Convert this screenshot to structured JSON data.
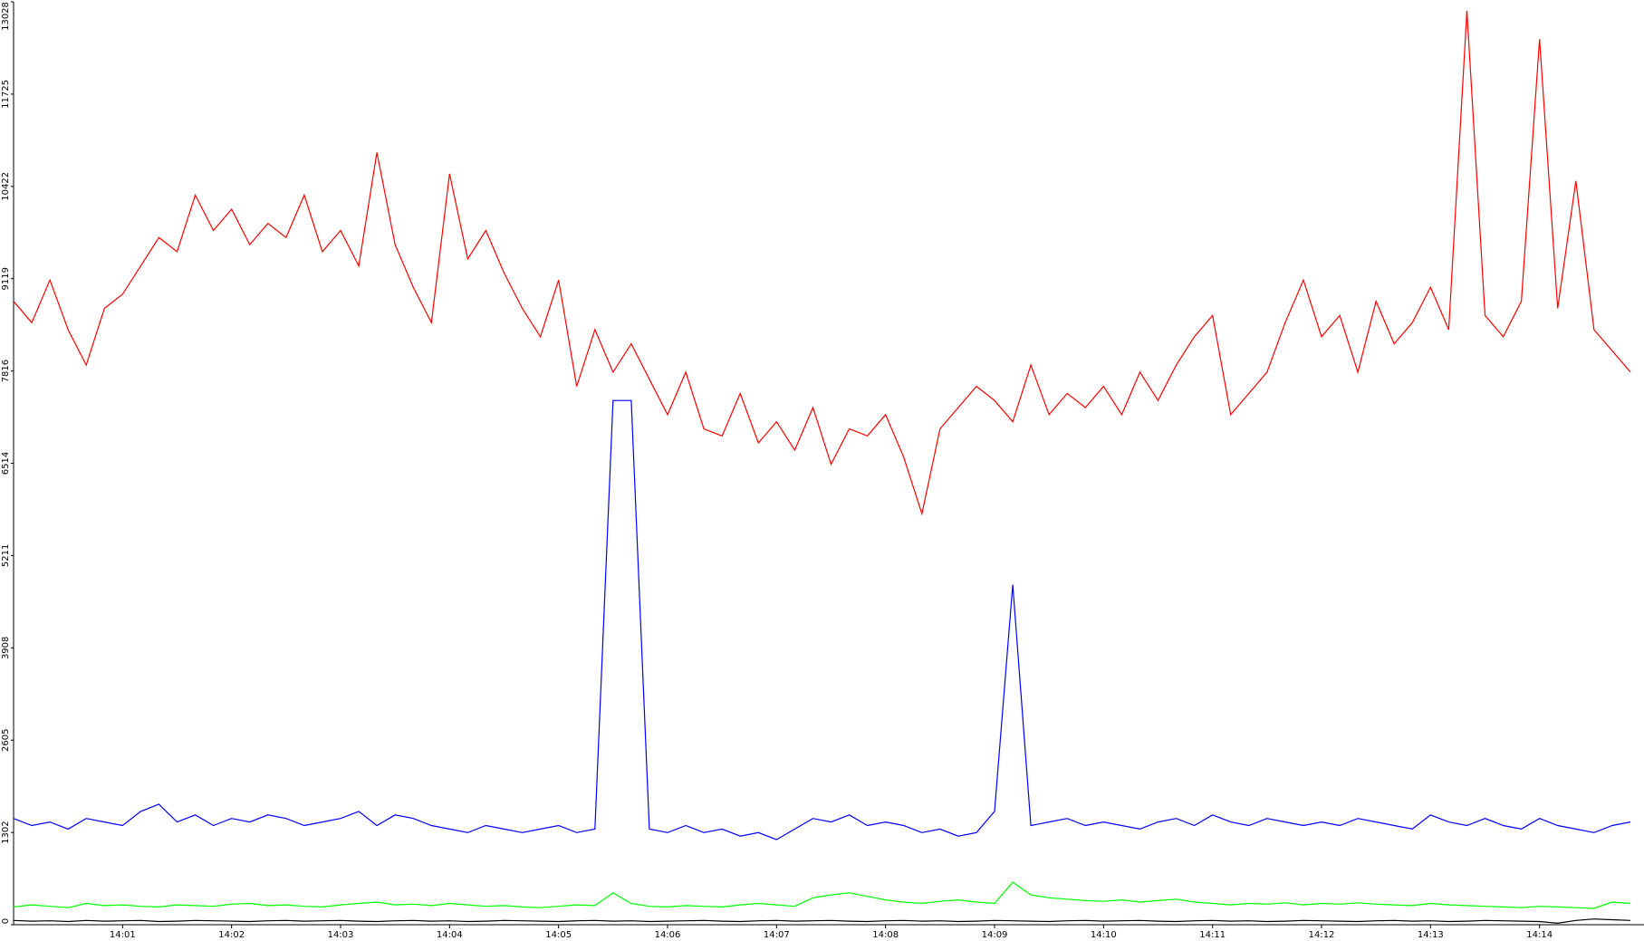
{
  "chart_data": {
    "type": "line",
    "categories": [
      null,
      null,
      null,
      null,
      null,
      null,
      "14:01",
      null,
      null,
      null,
      null,
      null,
      "14:02",
      null,
      null,
      null,
      null,
      null,
      "14:03",
      null,
      null,
      null,
      null,
      null,
      "14:04",
      null,
      null,
      null,
      null,
      null,
      "14:05",
      null,
      null,
      null,
      null,
      null,
      "14:06",
      null,
      null,
      null,
      null,
      null,
      "14:07",
      null,
      null,
      null,
      null,
      null,
      "14:08",
      null,
      null,
      null,
      null,
      null,
      "14:09",
      null,
      null,
      null,
      null,
      null,
      "14:10",
      null,
      null,
      null,
      null,
      null,
      "14:11",
      null,
      null,
      null,
      null,
      null,
      "14:12",
      null,
      null,
      null,
      null,
      null,
      "14:13",
      null,
      null,
      null,
      null,
      null,
      "14:14",
      null,
      null,
      null,
      null,
      null
    ],
    "series": [
      {
        "color": "#ff0000",
        "values": [
          8800,
          8500,
          9100,
          8400,
          7900,
          8700,
          8900,
          9300,
          9700,
          9500,
          10300,
          9800,
          10100,
          9600,
          9900,
          9700,
          10300,
          9500,
          9800,
          9300,
          10900,
          9600,
          9000,
          8500,
          10600,
          9400,
          9800,
          9200,
          8700,
          8300,
          9100,
          7600,
          8400,
          7800,
          8200,
          7700,
          7200,
          7800,
          7000,
          6900,
          7500,
          6800,
          7100,
          6700,
          7300,
          6500,
          7000,
          6900,
          7200,
          6600,
          5800,
          7000,
          7300,
          7600,
          7400,
          7100,
          7900,
          7200,
          7500,
          7300,
          7600,
          7200,
          7800,
          7400,
          7900,
          8300,
          8600,
          7200,
          7500,
          7800,
          8500,
          9100,
          8300,
          8600,
          7800,
          8800,
          8200,
          8500,
          9000,
          8400,
          12900,
          8600,
          8300,
          8800,
          12500,
          8700,
          10500,
          8400,
          8100,
          7800
        ]
      },
      {
        "color": "#0000ff",
        "values": [
          1500,
          1400,
          1450,
          1350,
          1500,
          1450,
          1400,
          1600,
          1700,
          1450,
          1550,
          1400,
          1500,
          1450,
          1550,
          1500,
          1400,
          1450,
          1500,
          1600,
          1400,
          1550,
          1500,
          1400,
          1350,
          1300,
          1400,
          1350,
          1300,
          1350,
          1400,
          1300,
          1350,
          7400,
          7400,
          1350,
          1300,
          1400,
          1300,
          1350,
          1250,
          1300,
          1200,
          1350,
          1500,
          1450,
          1550,
          1400,
          1450,
          1400,
          1300,
          1350,
          1250,
          1300,
          1600,
          4800,
          1400,
          1450,
          1500,
          1400,
          1450,
          1400,
          1350,
          1450,
          1500,
          1400,
          1550,
          1450,
          1400,
          1500,
          1450,
          1400,
          1450,
          1400,
          1500,
          1450,
          1400,
          1350,
          1550,
          1450,
          1400,
          1500,
          1400,
          1350,
          1500,
          1400,
          1350,
          1300,
          1400,
          1450
        ]
      },
      {
        "color": "#00ff00",
        "values": [
          250,
          280,
          260,
          240,
          300,
          270,
          280,
          260,
          250,
          280,
          270,
          260,
          290,
          300,
          270,
          280,
          260,
          250,
          280,
          300,
          320,
          280,
          290,
          270,
          300,
          280,
          260,
          270,
          250,
          240,
          260,
          280,
          270,
          450,
          300,
          260,
          250,
          270,
          260,
          250,
          280,
          300,
          280,
          260,
          380,
          420,
          450,
          400,
          350,
          320,
          300,
          330,
          350,
          320,
          300,
          600,
          420,
          380,
          360,
          340,
          330,
          350,
          320,
          340,
          360,
          320,
          300,
          280,
          300,
          290,
          310,
          280,
          300,
          290,
          310,
          290,
          280,
          270,
          300,
          280,
          270,
          260,
          250,
          240,
          260,
          250,
          240,
          230,
          320,
          300
        ]
      },
      {
        "color": "#000000",
        "values": [
          60,
          50,
          55,
          45,
          60,
          50,
          55,
          60,
          45,
          50,
          60,
          55,
          50,
          45,
          55,
          60,
          50,
          55,
          60,
          50,
          45,
          55,
          60,
          50,
          55,
          45,
          50,
          60,
          55,
          50,
          45,
          55,
          60,
          50,
          55,
          45,
          50,
          55,
          60,
          50,
          45,
          55,
          60,
          50,
          55,
          60,
          50,
          45,
          55,
          60,
          50,
          55,
          45,
          50,
          60,
          55,
          50,
          45,
          55,
          60,
          50,
          55,
          60,
          50,
          45,
          55,
          60,
          50,
          55,
          45,
          50,
          60,
          55,
          50,
          45,
          55,
          60,
          50,
          55,
          45,
          50,
          60,
          55,
          50,
          45,
          20,
          60,
          80,
          70,
          60
        ]
      }
    ],
    "ylim": [
      0,
      13028
    ],
    "yticks": [
      0,
      1302,
      2605,
      3908,
      5211,
      6514,
      7816,
      9119,
      10422,
      11725,
      13028
    ]
  }
}
